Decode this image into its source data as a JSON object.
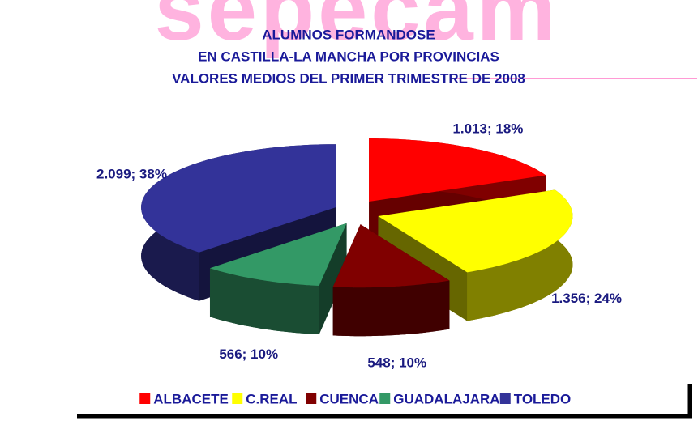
{
  "chart_data": {
    "type": "pie",
    "watermark": "sepecam",
    "title": [
      "ALUMNOS FORMANDOSE",
      "EN CASTILLA-LA MANCHA POR PROVINCIAS",
      "VALORES MEDIOS DEL PRIMER TRIMESTRE DE 2008"
    ],
    "categories": [
      "ALBACETE",
      "C.REAL",
      "CUENCA",
      "GUADALAJARA",
      "TOLEDO"
    ],
    "values": [
      1013,
      1356,
      548,
      566,
      2099
    ],
    "value_labels": [
      "1.013; 18%",
      "1.356; 24%",
      "548; 10%",
      "566; 10%",
      "2.099; 38%"
    ],
    "colors": [
      "#ff0000",
      "#ffff00",
      "#800000",
      "#339966",
      "#333399"
    ],
    "legend": "bottom"
  }
}
